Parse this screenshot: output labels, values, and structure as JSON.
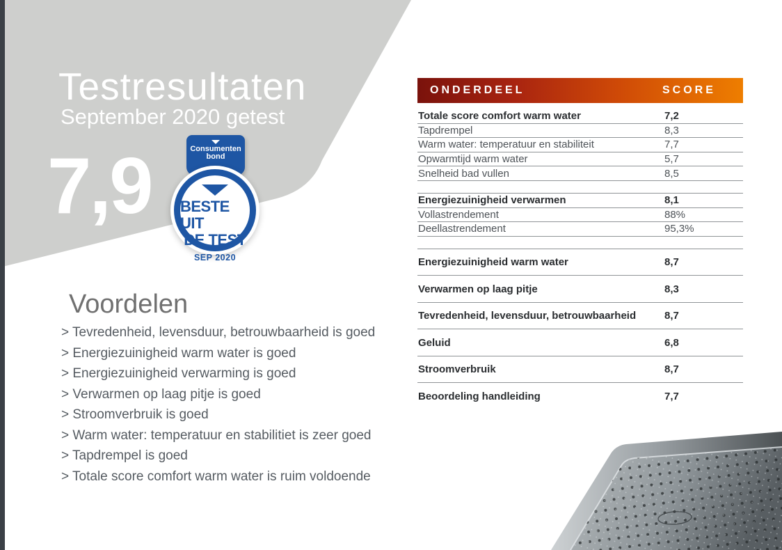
{
  "page": {
    "title": "Testresultaten",
    "subtitle": "September 2020 getest",
    "overall_score": "7,9"
  },
  "badge": {
    "brand_line1": "Consumenten",
    "brand_line2": "bond",
    "award_line1": "BESTE UIT",
    "award_line2": "DE TEST",
    "award_date": "SEP 2020"
  },
  "voordelen": {
    "heading": "Voordelen",
    "prefix": ">",
    "items": [
      "Tevredenheid, levensduur, betrouwbaarheid is goed",
      "Energiezuinigheid warm water is goed",
      "Energiezuinigheid verwarming is goed",
      "Verwarmen op laag pitje is goed",
      "Stroomverbruik is goed",
      "Warm water: temperatuur en stabilitiet is zeer goed",
      "Tapdrempel is goed",
      "Totale score comfort warm water is ruim voldoende"
    ]
  },
  "table": {
    "header": {
      "onderdeel": "ONDERDEEL",
      "score": "SCORE"
    },
    "sections": [
      {
        "spacing": "compact",
        "top_line": false,
        "last_row_line": true,
        "rows": [
          {
            "label": "Totale score comfort warm water",
            "score": "7,2",
            "bold": true
          },
          {
            "label": "Tapdrempel",
            "score": "8,3",
            "bold": false
          },
          {
            "label": "Warm water: temperatuur en stabiliteit",
            "score": "7,7",
            "bold": false
          },
          {
            "label": "Opwarmtijd warm water",
            "score": "5,7",
            "bold": false
          },
          {
            "label": "Snelheid bad vullen",
            "score": "8,5",
            "bold": false
          }
        ]
      },
      {
        "spacing": "compact",
        "top_line": true,
        "last_row_line": true,
        "rows": [
          {
            "label": "Energiezuinigheid verwarmen",
            "score": "8,1",
            "bold": true
          },
          {
            "label": "Vollastrendement",
            "score": "88%",
            "bold": false
          },
          {
            "label": "Deellastrendement",
            "score": "95,3%",
            "bold": false
          }
        ]
      },
      {
        "spacing": "tall",
        "top_line": true,
        "last_row_line": false,
        "rows": [
          {
            "label": "Energiezuinigheid warm water",
            "score": "8,7",
            "bold": true
          },
          {
            "label": "Verwarmen op laag pitje",
            "score": "8,3",
            "bold": true
          },
          {
            "label": "Tevredenheid, levensduur, betrouwbaarheid",
            "score": "8,7",
            "bold": true
          },
          {
            "label": "Geluid",
            "score": "6,8",
            "bold": true
          },
          {
            "label": "Stroomverbruik",
            "score": "8,7",
            "bold": true
          },
          {
            "label": "Beoordeling handleiding",
            "score": "7,7",
            "bold": true
          }
        ]
      }
    ]
  },
  "colors": {
    "badge_blue": "#1e56a4",
    "swoosh_gray": "#cecfcd",
    "left_bar": "#3b4046",
    "header_gradient_start": "#7a120c",
    "header_gradient_end": "#ee7e00",
    "line_gray": "#8f9396"
  }
}
